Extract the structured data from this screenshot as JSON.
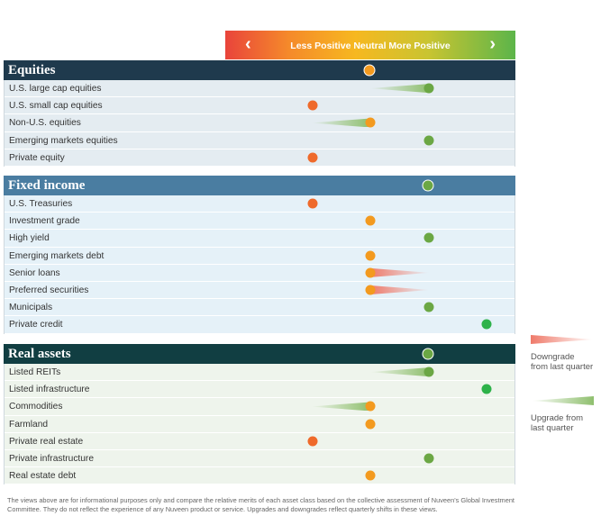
{
  "scale": {
    "left_arrow": "‹",
    "right_arrow": "›",
    "labels": "Less Positive Neutral More Positive"
  },
  "sections": [
    {
      "id": "equities",
      "title": "Equities",
      "header_color": "#1f3a4d",
      "overall": {
        "level": 2,
        "color": "#f39a1f"
      },
      "rows": [
        {
          "label": "U.S. large cap equities",
          "level": 3,
          "color": "#6ba744",
          "change": "upgrade"
        },
        {
          "label": "U.S. small cap equities",
          "level": 1,
          "color": "#ef6a2b",
          "change": null
        },
        {
          "label": "Non-U.S. equities",
          "level": 2,
          "color": "#f39a1f",
          "change": "upgrade"
        },
        {
          "label": "Emerging markets equities",
          "level": 3,
          "color": "#6ba744",
          "change": null
        },
        {
          "label": "Private equity",
          "level": 1,
          "color": "#ef6a2b",
          "change": null
        }
      ]
    },
    {
      "id": "fixed",
      "title": "Fixed income",
      "header_color": "#4a7da1",
      "overall": {
        "level": 3,
        "color": "#6ba744"
      },
      "rows": [
        {
          "label": "U.S. Treasuries",
          "level": 1,
          "color": "#ef6a2b",
          "change": null
        },
        {
          "label": "Investment grade",
          "level": 2,
          "color": "#f39a1f",
          "change": null
        },
        {
          "label": "High yield",
          "level": 3,
          "color": "#6ba744",
          "change": null
        },
        {
          "label": "Emerging markets debt",
          "level": 2,
          "color": "#f39a1f",
          "change": null
        },
        {
          "label": "Senior loans",
          "level": 2,
          "color": "#f39a1f",
          "change": "downgrade"
        },
        {
          "label": "Preferred securities",
          "level": 2,
          "color": "#f39a1f",
          "change": "downgrade"
        },
        {
          "label": "Municipals",
          "level": 3,
          "color": "#6ba744",
          "change": null
        },
        {
          "label": "Private credit",
          "level": 4,
          "color": "#2eb24a",
          "change": null
        }
      ]
    },
    {
      "id": "real",
      "title": "Real assets",
      "header_color": "#113e42",
      "overall": {
        "level": 3,
        "color": "#6ba744"
      },
      "rows": [
        {
          "label": "Listed REITs",
          "level": 3,
          "color": "#6ba744",
          "change": "upgrade"
        },
        {
          "label": "Listed infrastructure",
          "level": 4,
          "color": "#2eb24a",
          "change": null
        },
        {
          "label": "Commodities",
          "level": 2,
          "color": "#f39a1f",
          "change": "upgrade"
        },
        {
          "label": "Farmland",
          "level": 2,
          "color": "#f39a1f",
          "change": null
        },
        {
          "label": "Private real estate",
          "level": 1,
          "color": "#ef6a2b",
          "change": null
        },
        {
          "label": "Private infrastructure",
          "level": 3,
          "color": "#6ba744",
          "change": null
        },
        {
          "label": "Real estate debt",
          "level": 2,
          "color": "#f39a1f",
          "change": null
        }
      ]
    }
  ],
  "legend": {
    "downgrade": "Downgrade from last quarter",
    "upgrade": "Upgrade from last quarter",
    "downgrade_color": "#ef7a6a",
    "upgrade_color": "#8fbf6e"
  },
  "footnote": "The views above are for informational purposes only and compare the relative merits of each asset class based on the collective assessment of Nuveen's Global Investment Committee. They do not reflect the experience of any Nuveen product or service. Upgrades and downgrades reflect quarterly shifts in these views."
}
